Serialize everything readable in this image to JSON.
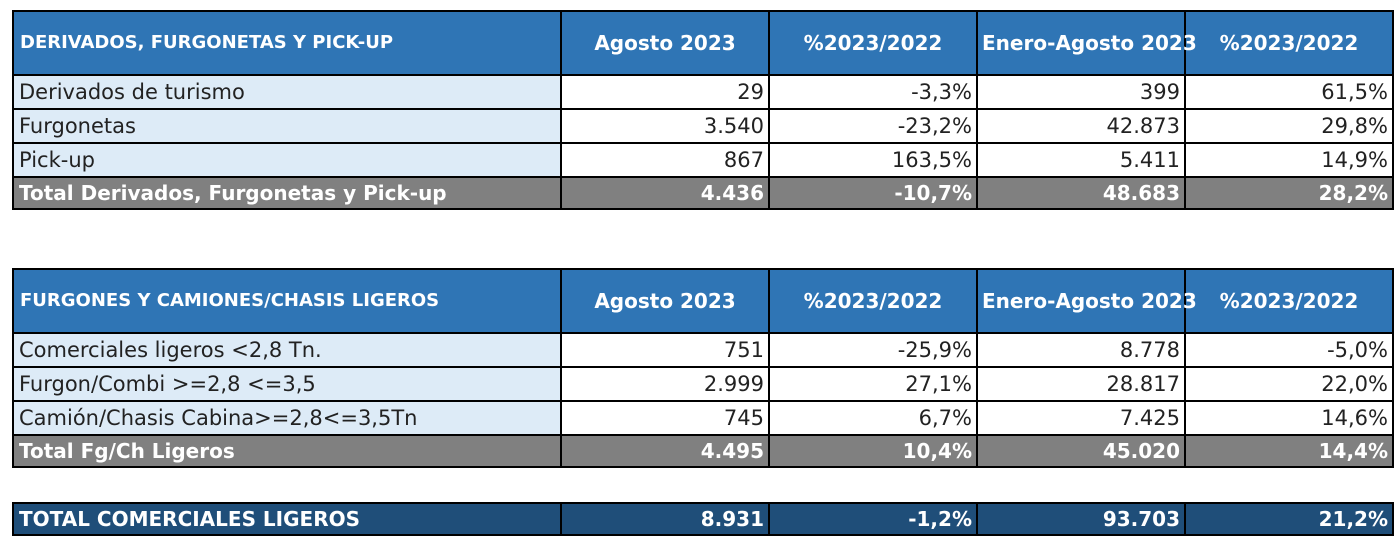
{
  "table1": {
    "header": [
      "DERIVADOS, FURGONETAS Y PICK-UP",
      "Agosto 2023",
      "%2023/2022",
      "Enero-Agosto 2023",
      "%2023/2022"
    ],
    "rows": [
      [
        "Derivados de turismo",
        "29",
        "-3,3%",
        "399",
        "61,5%"
      ],
      [
        "Furgonetas",
        "3.540",
        "-23,2%",
        "42.873",
        "29,8%"
      ],
      [
        "Pick-up",
        "867",
        "163,5%",
        "5.411",
        "14,9%"
      ]
    ],
    "total": [
      "Total Derivados, Furgonetas y Pick-up",
      "4.436",
      "-10,7%",
      "48.683",
      "28,2%"
    ]
  },
  "table2": {
    "header": [
      "FURGONES Y CAMIONES/CHASIS LIGEROS",
      "Agosto 2023",
      "%2023/2022",
      "Enero-Agosto 2023",
      "%2023/2022"
    ],
    "rows": [
      [
        "Comerciales ligeros <2,8 Tn.",
        "751",
        "-25,9%",
        "8.778",
        "-5,0%"
      ],
      [
        "Furgon/Combi >=2,8 <=3,5",
        "2.999",
        "27,1%",
        "28.817",
        "22,0%"
      ],
      [
        "Camión/Chasis Cabina>=2,8<=3,5Tn",
        "745",
        "6,7%",
        "7.425",
        "14,6%"
      ]
    ],
    "total": [
      "Total Fg/Ch Ligeros",
      "4.495",
      "10,4%",
      "45.020",
      "14,4%"
    ]
  },
  "grand_total": [
    "TOTAL COMERCIALES LIGEROS",
    "8.931",
    "-1,2%",
    "93.703",
    "21,2%"
  ],
  "colors": {
    "header": "#2f75b5",
    "label_bg": "#ddebf7",
    "total_bg": "#808080",
    "grand_bg": "#1f4e79"
  }
}
